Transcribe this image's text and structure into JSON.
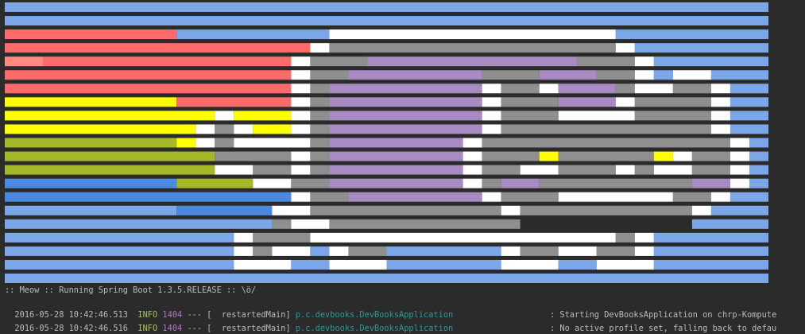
{
  "console": {
    "banner": ":: Meow :: Running Spring Boot 1.3.5.RELEASE :: \\ö/",
    "logs": [
      {
        "timestamp": "2016-05-28 10:42:46.513",
        "level": "INFO",
        "pid": "1404",
        "separator": "---",
        "thread": "[  restartedMain]",
        "logger": "p.c.devbooks.DevBooksApplication",
        "message": ": Starting DevBooksApplication on chrp-Kompute"
      },
      {
        "timestamp": "2016-05-28 10:42:46.516",
        "level": "INFO",
        "pid": "1404",
        "separator": "---",
        "thread": "[  restartedMain]",
        "logger": "p.c.devbooks.DevBooksApplication",
        "message": ": No active profile set, falling back to defau"
      }
    ]
  }
}
